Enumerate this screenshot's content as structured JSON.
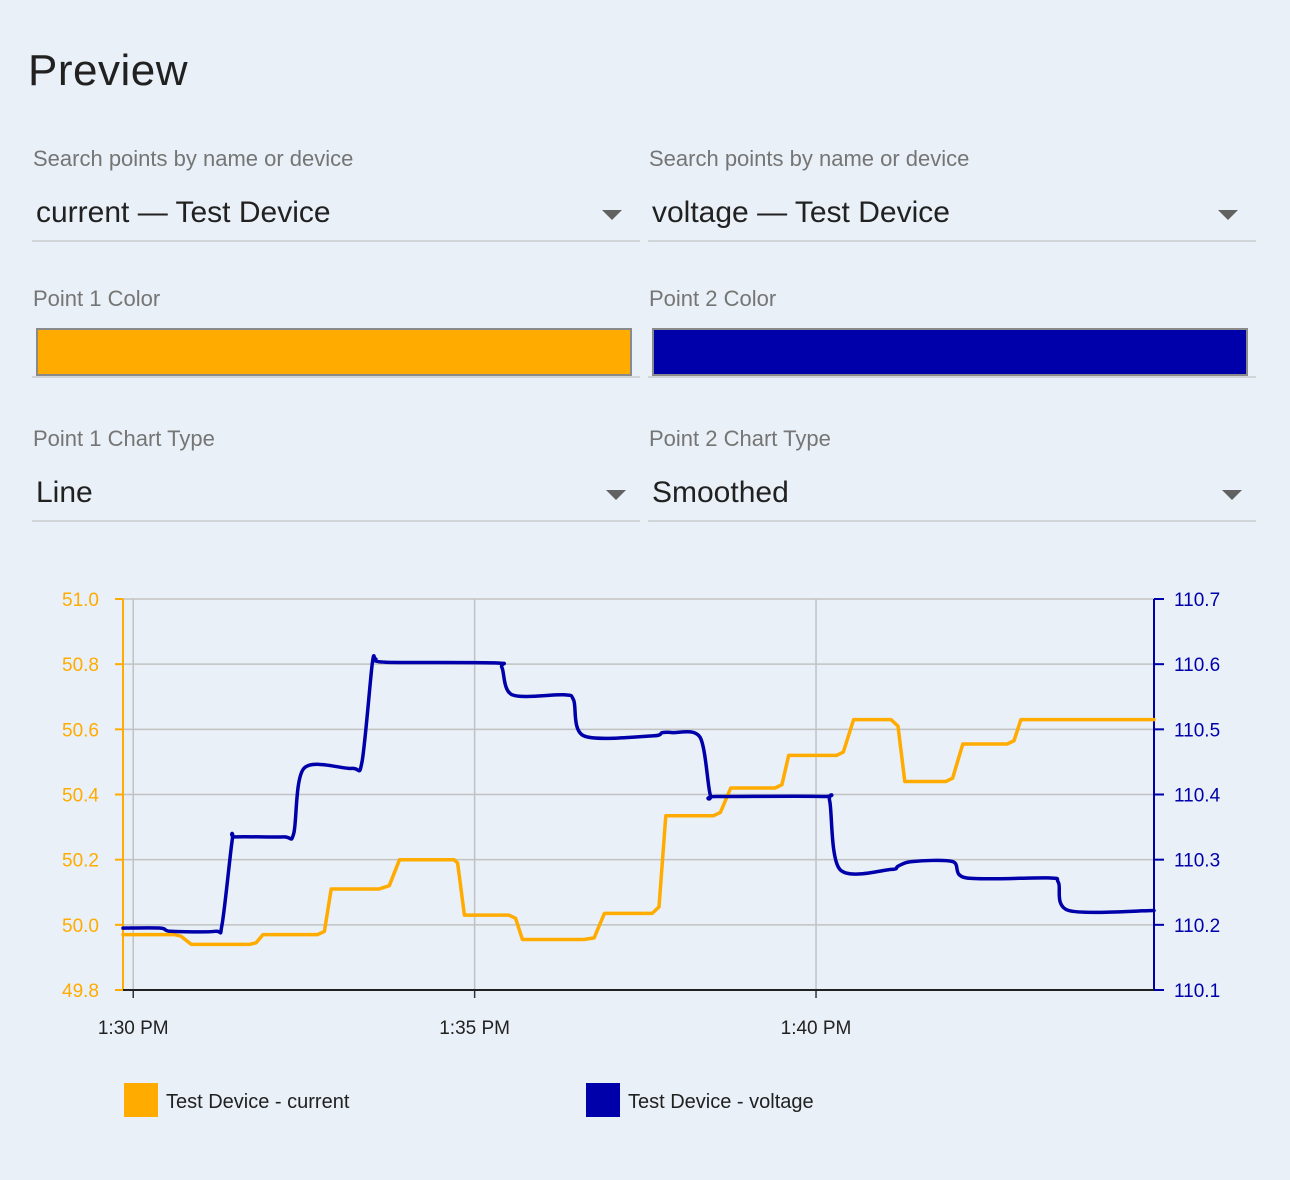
{
  "page": {
    "title": "Preview"
  },
  "point1": {
    "search_label": "Search points by name or device",
    "selected": "current — Test Device",
    "color_label": "Point 1 Color",
    "color": "#FFAB00",
    "chart_type_label": "Point 1 Chart Type",
    "chart_type": "Line"
  },
  "point2": {
    "search_label": "Search points by name or device",
    "selected": "voltage — Test Device",
    "color_label": "Point 2 Color",
    "color": "#0000AA",
    "chart_type_label": "Point 2 Chart Type",
    "chart_type": "Smoothed"
  },
  "icons": {
    "dropdown": "caret-down-icon"
  },
  "chart_data": {
    "type": "line",
    "grid": true,
    "legend_position": "bottom",
    "x_ticks": [
      "1:30 PM",
      "1:35 PM",
      "1:40 PM"
    ],
    "x_tick_minutes": [
      0,
      5,
      10
    ],
    "x_range_minutes": [
      -0.15,
      14.95
    ],
    "y_left": {
      "range": [
        49.8,
        51.0
      ],
      "ticks": [
        "51.0",
        "50.8",
        "50.6",
        "50.4",
        "50.2",
        "50.0",
        "49.8"
      ],
      "tick_values": [
        51.0,
        50.8,
        50.6,
        50.4,
        50.2,
        50.0,
        49.8
      ],
      "color": "#FFAB00"
    },
    "y_right": {
      "range": [
        110.1,
        110.7
      ],
      "ticks": [
        "110.7",
        "110.6",
        "110.5",
        "110.4",
        "110.3",
        "110.2",
        "110.1"
      ],
      "tick_values": [
        110.7,
        110.6,
        110.5,
        110.4,
        110.3,
        110.2,
        110.1
      ],
      "color": "#0000AA"
    },
    "series": [
      {
        "name": "Test Device - current",
        "axis": "left",
        "color": "#FFAB00",
        "style": "line",
        "x_minutes": [
          -0.15,
          0.6,
          0.7,
          0.85,
          1.7,
          1.8,
          1.9,
          2.7,
          2.8,
          2.9,
          3.6,
          3.75,
          3.9,
          4.7,
          4.75,
          4.85,
          5.5,
          5.6,
          5.7,
          6.6,
          6.75,
          6.9,
          7.6,
          7.7,
          7.8,
          8.5,
          8.6,
          8.75,
          9.4,
          9.5,
          9.6,
          10.3,
          10.4,
          10.55,
          11.1,
          11.2,
          11.3,
          11.9,
          12.0,
          12.15,
          12.8,
          12.9,
          13.0,
          14.95
        ],
        "values": [
          49.97,
          49.97,
          49.965,
          49.94,
          49.94,
          49.945,
          49.97,
          49.97,
          49.98,
          50.11,
          50.11,
          50.12,
          50.2,
          50.2,
          50.19,
          50.03,
          50.03,
          50.02,
          49.955,
          49.955,
          49.96,
          50.035,
          50.035,
          50.055,
          50.335,
          50.335,
          50.345,
          50.42,
          50.42,
          50.43,
          50.52,
          50.52,
          50.53,
          50.63,
          50.63,
          50.61,
          50.44,
          50.44,
          50.45,
          50.555,
          50.555,
          50.565,
          50.63,
          50.63
        ]
      },
      {
        "name": "Test Device - voltage",
        "axis": "right",
        "color": "#0000AA",
        "style": "smoothed",
        "x_minutes": [
          -0.15,
          0.4,
          0.55,
          1.2,
          1.3,
          1.45,
          1.5,
          2.2,
          2.35,
          2.5,
          3.2,
          3.35,
          3.5,
          3.55,
          3.7,
          5.3,
          5.4,
          5.55,
          6.3,
          6.45,
          6.6,
          7.6,
          7.75,
          7.9,
          8.3,
          8.45,
          8.55,
          10.1,
          10.2,
          10.35,
          11.1,
          11.2,
          11.4,
          12.0,
          12.2,
          13.4,
          13.55,
          13.7,
          14.95
        ],
        "values": [
          110.195,
          110.195,
          110.19,
          110.19,
          110.2,
          110.33,
          110.335,
          110.335,
          110.34,
          110.44,
          110.44,
          110.45,
          110.6,
          110.608,
          110.603,
          110.602,
          110.595,
          110.553,
          110.553,
          110.545,
          110.49,
          110.49,
          110.495,
          110.495,
          110.488,
          110.4,
          110.397,
          110.397,
          110.39,
          110.285,
          110.285,
          110.29,
          110.297,
          110.297,
          110.272,
          110.272,
          110.265,
          110.222,
          110.222
        ]
      }
    ]
  }
}
